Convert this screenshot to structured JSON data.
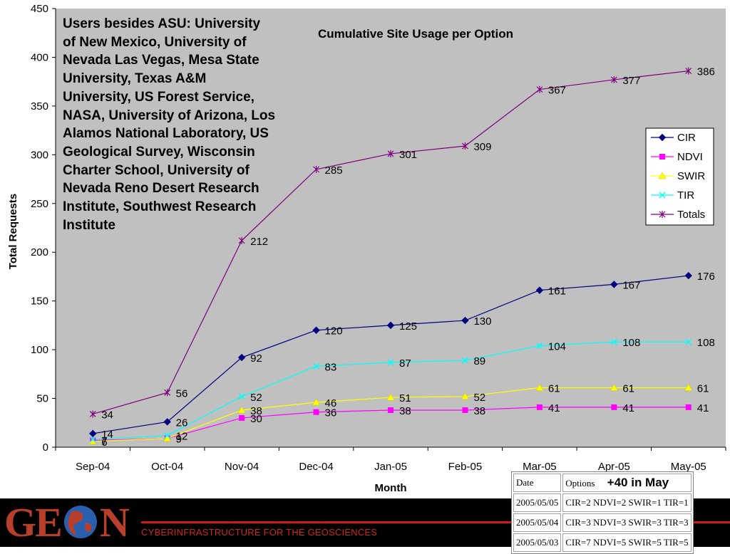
{
  "chart_data": {
    "type": "line",
    "title": "Cumulative Site Usage per Option",
    "xlabel": "Month",
    "ylabel": "Total Requests",
    "ylim": [
      0,
      450
    ],
    "yticks": [
      0,
      50,
      100,
      150,
      200,
      250,
      300,
      350,
      400,
      450
    ],
    "categories": [
      "Sep-04",
      "Oct-04",
      "Nov-04",
      "Dec-04",
      "Jan-05",
      "Feb-05",
      "Mar-05",
      "Apr-05",
      "May-05"
    ],
    "grid": false,
    "legend_position": "right",
    "series": [
      {
        "name": "CIR",
        "color": "#000080",
        "marker": "diamond",
        "values": [
          14,
          26,
          92,
          120,
          125,
          130,
          161,
          167,
          176
        ]
      },
      {
        "name": "NDVI",
        "color": "#ff00ff",
        "marker": "square",
        "values": [
          7,
          9,
          30,
          36,
          38,
          38,
          41,
          41,
          41
        ]
      },
      {
        "name": "SWIR",
        "color": "#ffff00",
        "marker": "triangle",
        "values": [
          6,
          9,
          38,
          46,
          51,
          52,
          61,
          61,
          61
        ]
      },
      {
        "name": "TIR",
        "color": "#00ffff",
        "marker": "x",
        "values": [
          8,
          12,
          52,
          83,
          87,
          89,
          104,
          108,
          108
        ]
      },
      {
        "name": "Totals",
        "color": "#800080",
        "marker": "star",
        "values": [
          34,
          56,
          212,
          285,
          301,
          309,
          367,
          377,
          386
        ]
      }
    ],
    "data_labels": {
      "CIR": [
        "14",
        "26",
        "92",
        "120",
        "125",
        "130",
        "161",
        "167",
        "176"
      ],
      "NDVI": [
        "7",
        "9",
        "30",
        "36",
        "38",
        "38",
        "41",
        "41",
        "41"
      ],
      "SWIR": [
        "6",
        "9",
        "38",
        "46",
        "51",
        "52",
        "61",
        "61",
        "61"
      ],
      "TIR": [
        "",
        "12",
        "52",
        "83",
        "87",
        "89",
        "104",
        "108",
        "108"
      ],
      "Totals": [
        "34",
        "56",
        "212",
        "285",
        "301",
        "309",
        "367",
        "377",
        "386"
      ]
    },
    "plot_background": "#c0c0c0"
  },
  "note": {
    "text": "Users besides ASU: University of New Mexico, University of Nevada Las Vegas, Mesa State University, Texas A&M University, US Forest Service, NASA, University of Arizona, Los Alamos National Laboratory, US Geological Survey, Wisconsin Charter School, University of Nevada Reno Desert Research Institute, Southwest Research Institute"
  },
  "footer": {
    "logo_text_left": "GE",
    "logo_text_right": "N",
    "tagline": "CYBERINFRASTRUCTURE FOR THE GEOSCIENCES"
  },
  "updates_table": {
    "header": {
      "date": "Date",
      "options": "Options",
      "extra": "+40 in  May"
    },
    "rows": [
      {
        "date": "2005/05/05",
        "options": "CIR=2 NDVI=2 SWIR=1 TIR=1"
      },
      {
        "date": "2005/05/04",
        "options": "CIR=3 NDVI=3 SWIR=3 TIR=3"
      },
      {
        "date": "2005/05/03",
        "options": "CIR=7 NDVI=5 SWIR=5 TIR=5"
      }
    ]
  }
}
